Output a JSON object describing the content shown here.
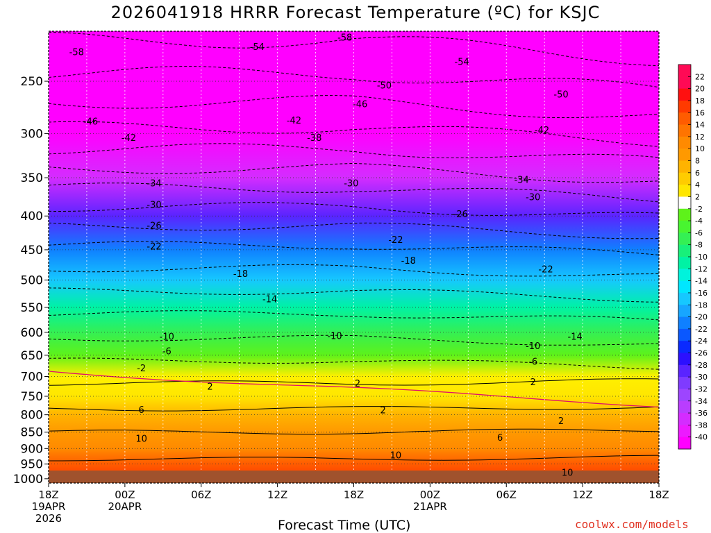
{
  "chart_data": {
    "type": "heatmap",
    "title": "2026041918 HRRR Forecast Temperature (ºC) for KSJC",
    "xlabel": "Forecast Time (UTC)",
    "ylabel": "",
    "credit": "coolwx.com/models",
    "x_range_hours": [
      0,
      48
    ],
    "y_range_hpa": [
      1015,
      210
    ],
    "x_ticks": [
      {
        "h": 0,
        "lines": [
          "18Z",
          "19APR",
          "2026"
        ]
      },
      {
        "h": 6,
        "lines": [
          "00Z",
          "20APR"
        ]
      },
      {
        "h": 12,
        "lines": [
          "06Z"
        ]
      },
      {
        "h": 18,
        "lines": [
          "12Z"
        ]
      },
      {
        "h": 24,
        "lines": [
          "18Z"
        ]
      },
      {
        "h": 30,
        "lines": [
          "00Z",
          "21APR"
        ]
      },
      {
        "h": 36,
        "lines": [
          "06Z"
        ]
      },
      {
        "h": 42,
        "lines": [
          "12Z"
        ]
      },
      {
        "h": 48,
        "lines": [
          "18Z"
        ]
      }
    ],
    "y_ticks": [
      250,
      300,
      350,
      400,
      450,
      500,
      550,
      600,
      650,
      700,
      750,
      800,
      850,
      900,
      950,
      1000
    ],
    "colorbar_ticks": [
      22,
      20,
      18,
      16,
      14,
      12,
      10,
      8,
      6,
      4,
      2,
      -2,
      -4,
      -6,
      -8,
      -10,
      -12,
      -14,
      -16,
      -18,
      -20,
      -22,
      -24,
      -26,
      -28,
      -30,
      -32,
      -34,
      -36,
      -38,
      -40
    ],
    "profile": {
      "pressure": [
        210,
        250,
        300,
        350,
        400,
        450,
        500,
        550,
        600,
        650,
        700,
        750,
        800,
        850,
        900,
        950,
        1000,
        1015
      ],
      "temperature": [
        -59,
        -53,
        -45,
        -36,
        -28,
        -21,
        -16,
        -11,
        -7,
        -3,
        1,
        4,
        7,
        10,
        12,
        15,
        18,
        19
      ]
    },
    "contour_labels": [
      {
        "v": "-58",
        "h": 2.2,
        "p": 226
      },
      {
        "v": "-54",
        "h": 16.4,
        "p": 222
      },
      {
        "v": "-58",
        "h": 23.3,
        "p": 215
      },
      {
        "v": "-54",
        "h": 32.5,
        "p": 234
      },
      {
        "v": "-50",
        "h": 26.4,
        "p": 254
      },
      {
        "v": "-50",
        "h": 40.3,
        "p": 262
      },
      {
        "v": "-46",
        "h": 3.3,
        "p": 288
      },
      {
        "v": "-46",
        "h": 24.5,
        "p": 271
      },
      {
        "v": "-42",
        "h": 6.3,
        "p": 305
      },
      {
        "v": "-42",
        "h": 19.3,
        "p": 287
      },
      {
        "v": "-42",
        "h": 38.8,
        "p": 297
      },
      {
        "v": "-38",
        "h": 20.9,
        "p": 305
      },
      {
        "v": "-34",
        "h": 8.3,
        "p": 357
      },
      {
        "v": "-34",
        "h": 37.2,
        "p": 353
      },
      {
        "v": "-30",
        "h": 8.3,
        "p": 385
      },
      {
        "v": "-30",
        "h": 23.8,
        "p": 357
      },
      {
        "v": "-30",
        "h": 38.1,
        "p": 375
      },
      {
        "v": "-26",
        "h": 8.3,
        "p": 414
      },
      {
        "v": "-26",
        "h": 32.4,
        "p": 398
      },
      {
        "v": "-22",
        "h": 8.3,
        "p": 445
      },
      {
        "v": "-22",
        "h": 27.3,
        "p": 435
      },
      {
        "v": "-22",
        "h": 39.1,
        "p": 482
      },
      {
        "v": "-18",
        "h": 15.1,
        "p": 490
      },
      {
        "v": "-18",
        "h": 28.3,
        "p": 468
      },
      {
        "v": "-14",
        "h": 17.4,
        "p": 535
      },
      {
        "v": "-14",
        "h": 41.4,
        "p": 610
      },
      {
        "v": "-10",
        "h": 9.3,
        "p": 610
      },
      {
        "v": "-10",
        "h": 22.5,
        "p": 608
      },
      {
        "v": "-10",
        "h": 38.1,
        "p": 630
      },
      {
        "v": "-6",
        "h": 9.3,
        "p": 642
      },
      {
        "v": "-6",
        "h": 38.1,
        "p": 665
      },
      {
        "v": "-2",
        "h": 7.3,
        "p": 681
      },
      {
        "v": "2",
        "h": 12.7,
        "p": 726
      },
      {
        "v": "2",
        "h": 24.3,
        "p": 718
      },
      {
        "v": "2",
        "h": 26.3,
        "p": 788
      },
      {
        "v": "2",
        "h": 38.1,
        "p": 715
      },
      {
        "v": "2",
        "h": 40.3,
        "p": 818
      },
      {
        "v": "6",
        "h": 7.3,
        "p": 787
      },
      {
        "v": "6",
        "h": 35.5,
        "p": 867
      },
      {
        "v": "10",
        "h": 7.3,
        "p": 870
      },
      {
        "v": "10",
        "h": 27.3,
        "p": 922
      },
      {
        "v": "10",
        "h": 40.8,
        "p": 980
      }
    ]
  }
}
